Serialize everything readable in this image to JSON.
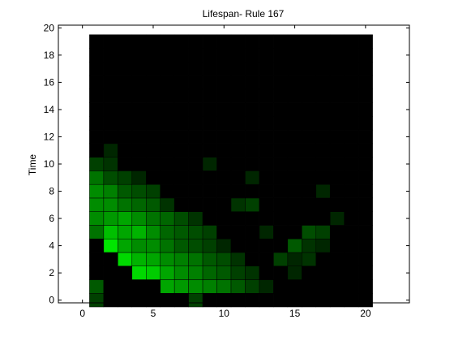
{
  "chart_data": {
    "type": "heatmap",
    "title": "Lifespan- Rule 167",
    "xlabel": "",
    "ylabel": "Time",
    "xlim": [
      -1.7,
      23.1
    ],
    "ylim": [
      -0.2,
      20.2
    ],
    "x_ticks": [
      0,
      5,
      10,
      15,
      20
    ],
    "y_ticks": [
      0,
      2,
      4,
      6,
      8,
      10,
      12,
      14,
      16,
      18,
      20
    ],
    "colormap": "black-to-green",
    "value_range": [
      0,
      1
    ],
    "grid": "cell-borders",
    "cells_x_start": 1,
    "cells_y_start": 0,
    "matrix": [
      [
        0.25,
        0.0,
        0.0,
        0.0,
        0.0,
        0.0,
        0.0,
        0.25,
        0.0,
        0.0,
        0.0,
        0.0,
        0.0,
        0.0,
        0.0,
        0.0,
        0.0,
        0.0,
        0.0,
        0.0
      ],
      [
        0.35,
        0.0,
        0.0,
        0.0,
        0.0,
        0.65,
        0.6,
        0.55,
        0.5,
        0.45,
        0.35,
        0.25,
        0.15,
        0.0,
        0.0,
        0.0,
        0.0,
        0.0,
        0.0,
        0.0
      ],
      [
        0.0,
        0.0,
        0.0,
        0.85,
        0.8,
        0.65,
        0.55,
        0.5,
        0.4,
        0.35,
        0.25,
        0.2,
        0.0,
        0.0,
        0.15,
        0.0,
        0.0,
        0.0,
        0.0,
        0.0
      ],
      [
        0.0,
        0.0,
        0.85,
        0.7,
        0.65,
        0.55,
        0.5,
        0.45,
        0.35,
        0.3,
        0.2,
        0.0,
        0.0,
        0.25,
        0.15,
        0.2,
        0.0,
        0.0,
        0.0,
        0.0
      ],
      [
        0.0,
        0.9,
        0.65,
        0.55,
        0.55,
        0.45,
        0.35,
        0.3,
        0.25,
        0.15,
        0.0,
        0.0,
        0.0,
        0.0,
        0.35,
        0.2,
        0.15,
        0.0,
        0.0,
        0.0
      ],
      [
        0.45,
        0.75,
        0.65,
        0.7,
        0.55,
        0.4,
        0.35,
        0.3,
        0.25,
        0.0,
        0.0,
        0.0,
        0.15,
        0.0,
        0.0,
        0.3,
        0.25,
        0.0,
        0.0,
        0.0
      ],
      [
        0.55,
        0.6,
        0.65,
        0.55,
        0.45,
        0.4,
        0.3,
        0.2,
        0.0,
        0.0,
        0.0,
        0.0,
        0.0,
        0.0,
        0.0,
        0.0,
        0.0,
        0.15,
        0.0,
        0.0
      ],
      [
        0.55,
        0.55,
        0.45,
        0.4,
        0.35,
        0.2,
        0.0,
        0.0,
        0.0,
        0.0,
        0.2,
        0.25,
        0.0,
        0.0,
        0.0,
        0.0,
        0.0,
        0.0,
        0.0,
        0.0
      ],
      [
        0.55,
        0.5,
        0.35,
        0.3,
        0.25,
        0.0,
        0.0,
        0.0,
        0.0,
        0.0,
        0.0,
        0.0,
        0.0,
        0.0,
        0.0,
        0.0,
        0.15,
        0.0,
        0.0,
        0.0
      ],
      [
        0.45,
        0.3,
        0.25,
        0.15,
        0.0,
        0.0,
        0.0,
        0.0,
        0.0,
        0.0,
        0.0,
        0.15,
        0.0,
        0.0,
        0.0,
        0.0,
        0.0,
        0.0,
        0.0,
        0.0
      ],
      [
        0.25,
        0.2,
        0.0,
        0.0,
        0.0,
        0.0,
        0.0,
        0.0,
        0.15,
        0.0,
        0.0,
        0.0,
        0.0,
        0.0,
        0.0,
        0.0,
        0.0,
        0.0,
        0.0,
        0.0
      ],
      [
        0.0,
        0.15,
        0.0,
        0.0,
        0.0,
        0.0,
        0.0,
        0.0,
        0.0,
        0.0,
        0.0,
        0.0,
        0.0,
        0.0,
        0.0,
        0.0,
        0.0,
        0.0,
        0.0,
        0.0
      ],
      [
        0.0,
        0.0,
        0.0,
        0.0,
        0.0,
        0.0,
        0.0,
        0.0,
        0.0,
        0.0,
        0.0,
        0.0,
        0.0,
        0.0,
        0.0,
        0.0,
        0.0,
        0.0,
        0.0,
        0.0
      ],
      [
        0.0,
        0.0,
        0.0,
        0.0,
        0.0,
        0.0,
        0.0,
        0.0,
        0.0,
        0.0,
        0.0,
        0.0,
        0.0,
        0.0,
        0.0,
        0.0,
        0.0,
        0.0,
        0.0,
        0.0
      ],
      [
        0.0,
        0.0,
        0.0,
        0.0,
        0.0,
        0.0,
        0.0,
        0.0,
        0.0,
        0.0,
        0.0,
        0.0,
        0.0,
        0.0,
        0.0,
        0.0,
        0.0,
        0.0,
        0.0,
        0.0
      ],
      [
        0.0,
        0.0,
        0.0,
        0.0,
        0.0,
        0.0,
        0.0,
        0.0,
        0.0,
        0.0,
        0.0,
        0.0,
        0.0,
        0.0,
        0.0,
        0.0,
        0.0,
        0.0,
        0.0,
        0.0
      ],
      [
        0.0,
        0.0,
        0.0,
        0.0,
        0.0,
        0.0,
        0.0,
        0.0,
        0.0,
        0.0,
        0.0,
        0.0,
        0.0,
        0.0,
        0.0,
        0.0,
        0.0,
        0.0,
        0.0,
        0.0
      ],
      [
        0.0,
        0.0,
        0.0,
        0.0,
        0.0,
        0.0,
        0.0,
        0.0,
        0.0,
        0.0,
        0.0,
        0.0,
        0.0,
        0.0,
        0.0,
        0.0,
        0.0,
        0.0,
        0.0,
        0.0
      ],
      [
        0.0,
        0.0,
        0.0,
        0.0,
        0.0,
        0.0,
        0.0,
        0.0,
        0.0,
        0.0,
        0.0,
        0.0,
        0.0,
        0.0,
        0.0,
        0.0,
        0.0,
        0.0,
        0.0,
        0.0
      ],
      [
        0.0,
        0.0,
        0.0,
        0.0,
        0.0,
        0.0,
        0.0,
        0.0,
        0.0,
        0.0,
        0.0,
        0.0,
        0.0,
        0.0,
        0.0,
        0.0,
        0.0,
        0.0,
        0.0,
        0.0
      ]
    ],
    "colors": {
      "background": "#ffffff",
      "low": "#000000",
      "high": "#00ff00",
      "cell_border": "#000000",
      "axes": "#000000"
    }
  }
}
